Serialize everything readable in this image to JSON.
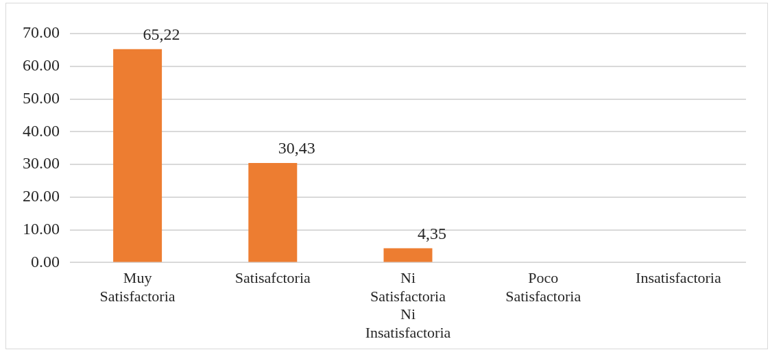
{
  "chart_data": {
    "type": "bar",
    "categories": [
      "Muy Satisfactoria",
      "Satisafctoria",
      "Ni Satisfactoria Ni Insatisfactoria",
      "Poco Satisfactoria",
      "Insatisfactoria"
    ],
    "values": [
      65.22,
      30.43,
      4.35,
      0,
      0
    ],
    "value_labels": [
      "65,22",
      "30,43",
      "4,35",
      null,
      null
    ],
    "color": "#ed7d31",
    "ylim": [
      0,
      70
    ],
    "yticks": [
      {
        "value": 0,
        "label": "0.00"
      },
      {
        "value": 10,
        "label": "10.00"
      },
      {
        "value": 20,
        "label": "20.00"
      },
      {
        "value": 30,
        "label": "30.00"
      },
      {
        "value": 40,
        "label": "40.00"
      },
      {
        "value": 50,
        "label": "50.00"
      },
      {
        "value": 60,
        "label": "60.00"
      },
      {
        "value": 70,
        "label": "70.00"
      }
    ],
    "grid": "y",
    "legend": false
  }
}
